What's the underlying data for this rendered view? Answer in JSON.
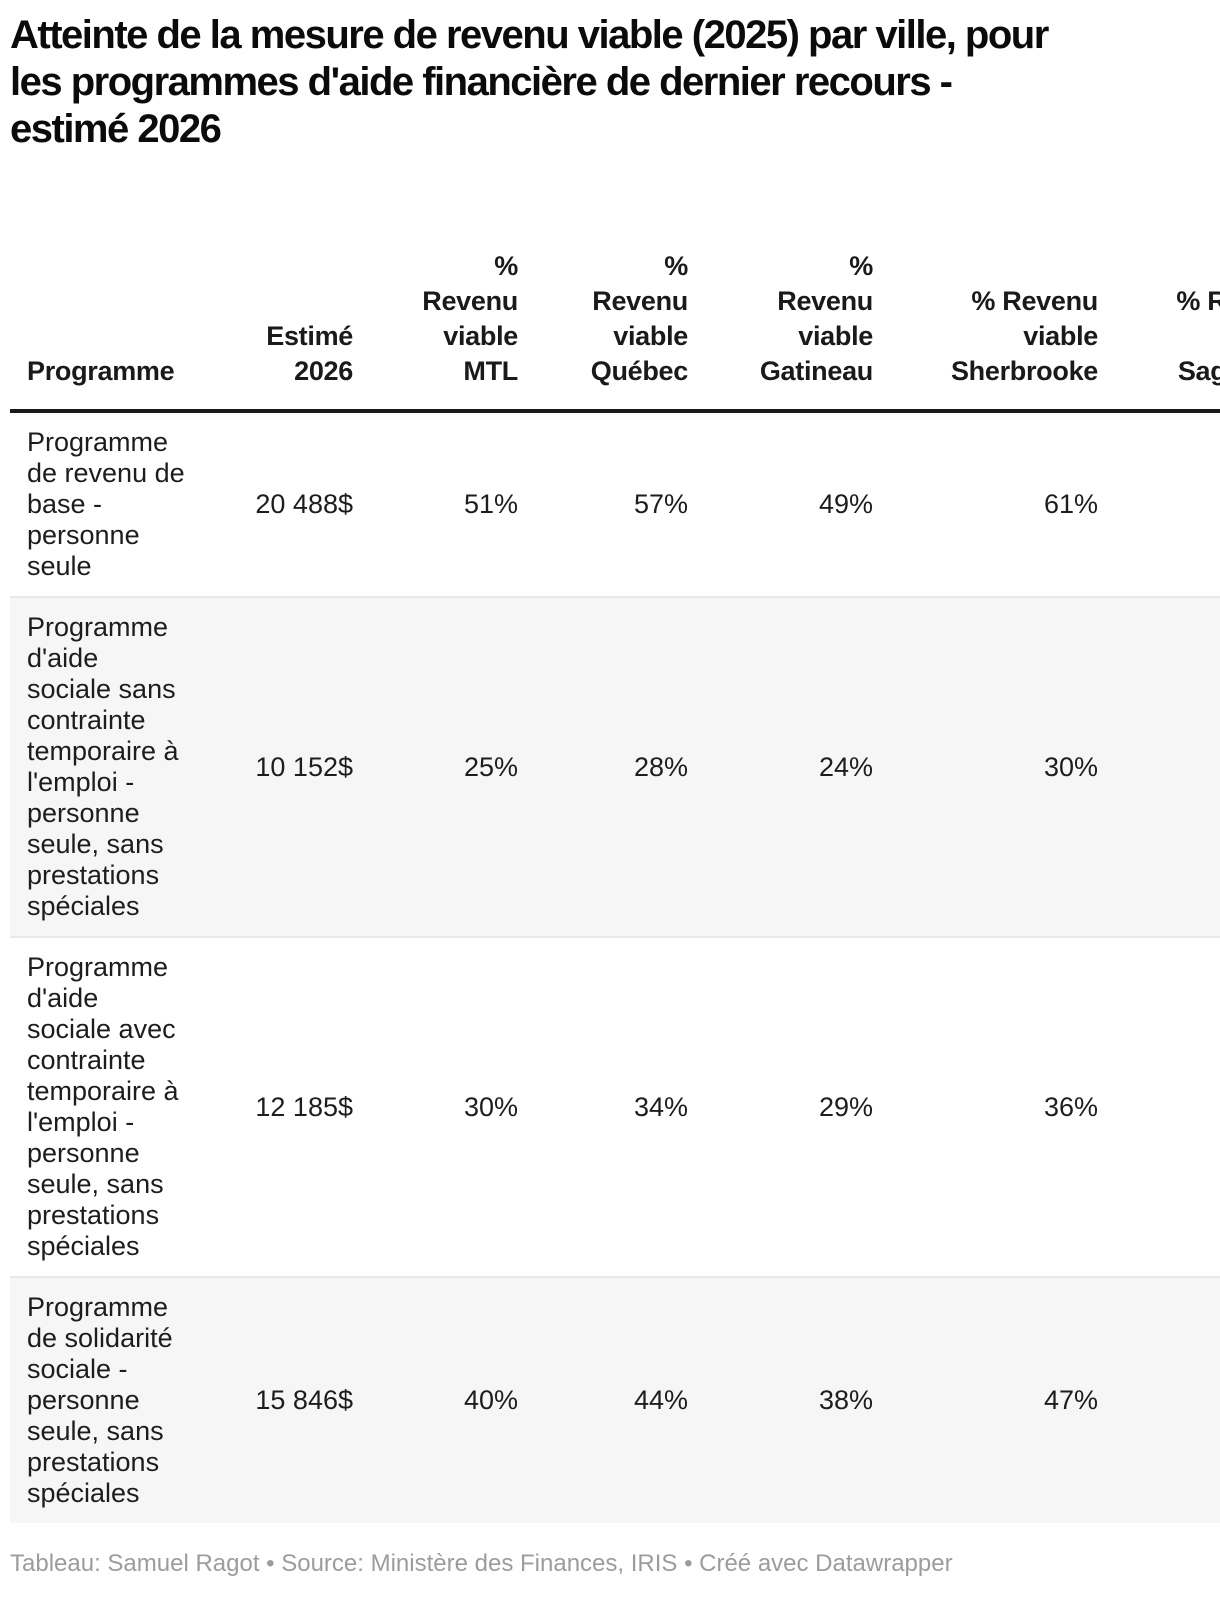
{
  "title": {
    "text": "Atteinte de la mesure de revenu viable (2025) par ville, pour\nles programmes d'aide financière de dernier recours -\nestimé 2026"
  },
  "display": {
    "header_labels": [
      "Programme",
      "Estimé\n2026",
      "%\nRevenu\nviable\nMTL",
      "%\nRevenu\nviable\nQuébec",
      "%\nRevenu\nviable\nGatineau",
      "% Revenu\nviable\nSherbrooke",
      "% Revenu\nviable\nSaguenay"
    ],
    "programme_lines": [
      "Programme\nde revenu de\nbase -\npersonne\nseule",
      "Programme\nd'aide\nsociale sans\ncontrainte\ntemporaire à\nl'emploi -\npersonne\nseule, sans\nprestations\nspéciales",
      "Programme\nd'aide\nsociale avec\ncontrainte\ntemporaire à\nl'emploi -\npersonne\nseule, sans\nprestations\nspéciales",
      "Programme\nde solidarité\nsociale -\npersonne\nseule, sans\nprestations\nspéciales"
    ]
  },
  "chart_data": {
    "type": "table",
    "title": "Atteinte de la mesure de revenu viable (2025) par ville, pour les programmes d'aide financière de dernier recours - estimé 2026",
    "columns": [
      "Programme",
      "Estimé 2026",
      "% Revenu viable MTL",
      "% Revenu viable Québec",
      "% Revenu viable Gatineau",
      "% Revenu viable Sherbrooke",
      "% Revenu viable Saguenay"
    ],
    "rows": [
      {
        "programme": "Programme de revenu de base - personne seule",
        "estime_2026": "20 488$",
        "mtl": "51%",
        "quebec": "57%",
        "gatineau": "49%",
        "sherbrooke": "61%",
        "saguenay": ""
      },
      {
        "programme": "Programme d'aide sociale sans contrainte temporaire à l'emploi - personne seule, sans prestations spéciales",
        "estime_2026": "10 152$",
        "mtl": "25%",
        "quebec": "28%",
        "gatineau": "24%",
        "sherbrooke": "30%",
        "saguenay": ""
      },
      {
        "programme": "Programme d'aide sociale avec contrainte temporaire à l'emploi - personne seule, sans prestations spéciales",
        "estime_2026": "12 185$",
        "mtl": "30%",
        "quebec": "34%",
        "gatineau": "29%",
        "sherbrooke": "36%",
        "saguenay": ""
      },
      {
        "programme": "Programme de solidarité sociale - personne seule, sans prestations spéciales",
        "estime_2026": "15 846$",
        "mtl": "40%",
        "quebec": "44%",
        "gatineau": "38%",
        "sherbrooke": "47%",
        "saguenay": ""
      }
    ],
    "layout_hints": {
      "striped_rows": true,
      "numeric_alignment": "right",
      "last_column_clipped_at_right_edge": true
    },
    "accent_colors": {
      "header_rule": "#1a1a1a",
      "row_stripe": "#f6f6f6",
      "footer_text": "#9c9c9c"
    }
  },
  "footer": {
    "text": "Tableau: Samuel Ragot • Source: Ministère des Finances, IRIS • Créé avec Datawrapper"
  }
}
